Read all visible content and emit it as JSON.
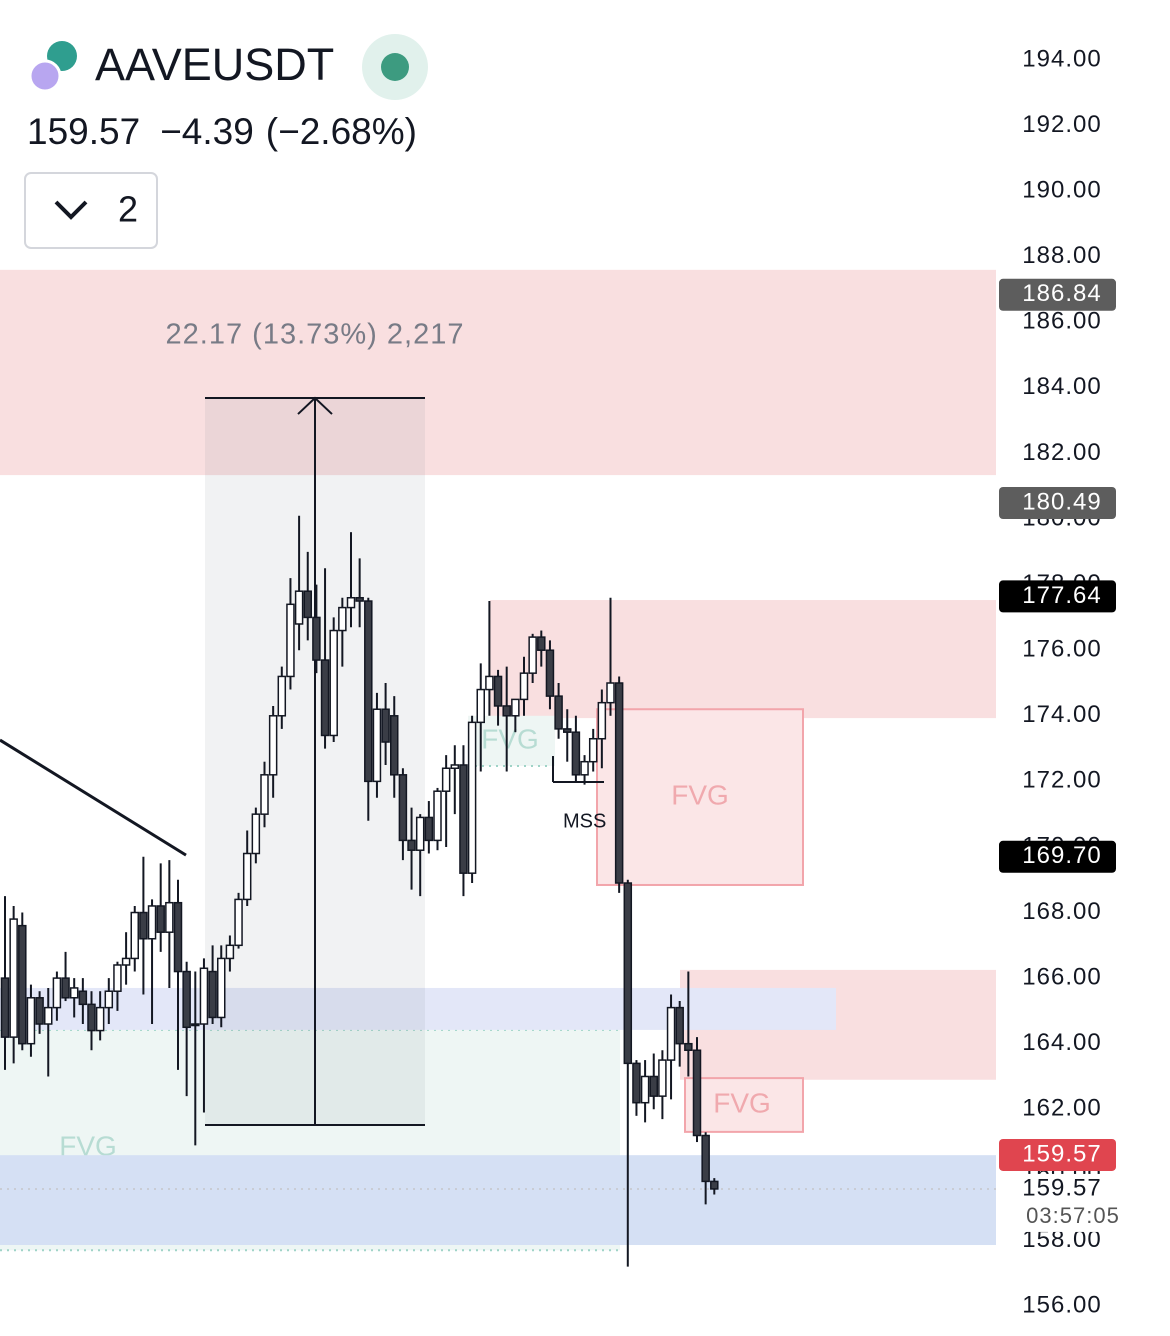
{
  "chart_data": {
    "type": "candlestick",
    "symbol": "AAVEUSDT",
    "last": 159.57,
    "change": {
      "value": -4.39,
      "label": "−4.39"
    },
    "change_pct": {
      "value": -2.68,
      "label": "(−2.68%)"
    },
    "indicators_count": 2,
    "open": [
      166.0,
      164.2,
      167.6,
      164.0,
      165.4,
      164.6,
      165.1,
      166.0,
      165.4,
      165.6,
      165.2,
      164.4,
      165.1,
      165.6,
      166.4,
      166.6,
      168.0,
      167.2,
      168.2,
      167.4,
      168.3,
      166.2,
      164.6,
      164.6,
      166.2,
      164.8,
      166.6,
      167.0,
      168.4,
      169.8,
      171.0,
      172.2,
      174.0,
      175.2,
      176.8,
      177.8,
      177.0,
      175.7,
      173.4,
      176.6,
      177.3,
      177.6,
      177.5,
      172.0,
      174.2,
      174.0,
      172.2,
      170.2,
      169.9,
      170.9,
      170.2,
      171.7,
      172.4,
      172.5,
      169.2,
      173.8,
      174.8,
      175.2,
      174.3,
      174.0,
      174.5,
      175.3,
      176.4,
      176.0,
      174.6,
      173.6,
      173.5,
      172.2,
      172.6,
      173.3,
      174.4,
      175.0,
      168.9,
      163.4,
      162.2,
      163.0,
      162.4,
      163.5,
      165.1,
      164.0,
      163.8,
      161.2,
      159.8
    ],
    "high": [
      168.5,
      168.2,
      168.0,
      165.8,
      165.6,
      165.7,
      166.2,
      166.8,
      166.0,
      166.0,
      165.6,
      165.6,
      166.0,
      166.5,
      167.4,
      168.2,
      169.7,
      168.4,
      169.5,
      169.6,
      169.0,
      166.5,
      166.2,
      166.6,
      167.0,
      167.0,
      167.3,
      168.6,
      170.5,
      171.2,
      172.6,
      174.3,
      175.5,
      178.2,
      180.1,
      179.0,
      178.0,
      178.5,
      177.0,
      177.6,
      179.6,
      178.8,
      177.6,
      174.7,
      175.0,
      174.6,
      172.4,
      171.2,
      171.0,
      171.4,
      171.8,
      172.8,
      173.1,
      173.1,
      174.0,
      175.6,
      177.5,
      175.4,
      175.5,
      174.5,
      175.8,
      176.5,
      176.6,
      176.3,
      175.0,
      174.2,
      174.0,
      172.8,
      173.6,
      174.8,
      177.6,
      175.2,
      169.0,
      163.5,
      163.5,
      163.7,
      163.8,
      165.5,
      165.3,
      166.2,
      164.2,
      161.3,
      159.9
    ],
    "low": [
      163.2,
      163.4,
      163.8,
      163.6,
      164.3,
      163.0,
      164.7,
      165.3,
      164.8,
      164.6,
      163.8,
      164.1,
      164.6,
      165.0,
      165.8,
      166.2,
      165.5,
      164.6,
      166.8,
      165.7,
      163.2,
      162.4,
      160.9,
      161.9,
      164.6,
      164.5,
      166.2,
      166.9,
      168.2,
      169.5,
      170.6,
      171.5,
      173.6,
      174.8,
      176.0,
      176.3,
      175.3,
      173.0,
      173.2,
      175.5,
      176.7,
      176.7,
      170.8,
      171.5,
      172.5,
      171.5,
      169.6,
      168.7,
      168.5,
      169.8,
      169.9,
      170.0,
      171.0,
      168.5,
      168.9,
      172.3,
      174.0,
      173.7,
      172.3,
      173.5,
      174.0,
      175.0,
      175.5,
      174.2,
      173.3,
      172.6,
      172.0,
      171.9,
      172.3,
      172.4,
      174.0,
      168.6,
      157.2,
      161.8,
      161.6,
      162.0,
      161.7,
      162.3,
      163.3,
      163.0,
      161.0,
      159.1,
      159.4
    ],
    "close": [
      164.2,
      167.8,
      164.0,
      165.4,
      164.6,
      165.1,
      166.0,
      165.4,
      165.7,
      165.2,
      164.4,
      165.1,
      165.6,
      166.4,
      166.6,
      168.0,
      167.2,
      168.2,
      167.4,
      168.3,
      166.2,
      164.5,
      164.6,
      166.3,
      164.8,
      166.6,
      167.0,
      168.4,
      169.8,
      171.0,
      172.2,
      174.0,
      175.2,
      177.4,
      177.8,
      177.0,
      175.7,
      173.4,
      176.6,
      177.3,
      177.6,
      177.5,
      172.0,
      174.2,
      173.2,
      172.2,
      170.2,
      169.9,
      170.9,
      170.2,
      171.7,
      172.4,
      172.5,
      169.2,
      173.8,
      174.8,
      175.2,
      174.3,
      174.0,
      174.5,
      175.3,
      176.4,
      176.0,
      174.6,
      173.6,
      173.5,
      172.2,
      172.6,
      173.3,
      174.4,
      175.0,
      168.9,
      163.4,
      162.2,
      163.0,
      162.4,
      163.5,
      165.1,
      164.0,
      163.8,
      161.2,
      159.8,
      159.57
    ],
    "ylim": [
      156,
      194
    ],
    "yticks": [
      {
        "value": 156,
        "label": "156.00"
      },
      {
        "value": 158,
        "label": "158.00"
      },
      {
        "value": 160,
        "label": "160.00"
      },
      {
        "value": 162,
        "label": "162.00"
      },
      {
        "value": 164,
        "label": "164.00"
      },
      {
        "value": 166,
        "label": "166.00"
      },
      {
        "value": 168,
        "label": "168.00"
      },
      {
        "value": 170,
        "label": "170.00"
      },
      {
        "value": 172,
        "label": "172.00"
      },
      {
        "value": 174,
        "label": "174.00"
      },
      {
        "value": 176,
        "label": "176.00"
      },
      {
        "value": 178,
        "label": "178.00"
      },
      {
        "value": 180,
        "label": "180.00"
      },
      {
        "value": 182,
        "label": "182.00"
      },
      {
        "value": 184,
        "label": "184.00"
      },
      {
        "value": 186,
        "label": "186.00"
      },
      {
        "value": 188,
        "label": "188.00"
      },
      {
        "value": 190,
        "label": "190.00"
      },
      {
        "value": 192,
        "label": "192.00"
      },
      {
        "value": 194,
        "label": "194.00"
      }
    ],
    "zones": [
      {
        "top": 187.6,
        "bottom": 181.34,
        "color": "#f9dfe0"
      },
      {
        "top": 177.53,
        "bottom": 173.93,
        "color": "#f9dfe0"
      },
      {
        "top": 174.2,
        "bottom": 168.84,
        "color": "#fbe6e7",
        "label": "FVG"
      },
      {
        "top": 166.25,
        "bottom": 162.9,
        "color": "#f9dfe0"
      },
      {
        "top": 162.95,
        "bottom": 161.31,
        "color": "#fbe6e7",
        "label": "FVG"
      },
      {
        "top": 164.42,
        "bottom": 157.7,
        "color": "#eef6f4",
        "label": "FVG"
      },
      {
        "top": 165.7,
        "bottom": 164.42,
        "color": "#e3e7f8"
      },
      {
        "top": 160.6,
        "bottom": 157.86,
        "color": "#d5e0f4"
      },
      {
        "top": 174.0,
        "bottom": 172.47,
        "color": "#eef6f4",
        "label": "FVG"
      }
    ],
    "measure": {
      "top": 183.69,
      "bottom": 161.52,
      "label": "22.17 (13.73%) 2,217"
    },
    "trendline": {
      "start": 173.26,
      "end": 169.75
    },
    "mss": {
      "level": 171.98,
      "label": "MSS"
    },
    "price_labels": [
      {
        "value": 186.84,
        "label": "186.84",
        "color": "#5d5d5d"
      },
      {
        "value": 180.49,
        "label": "180.49",
        "color": "#5d5d5d"
      },
      {
        "value": 177.64,
        "label": "177.64",
        "color": "#000000"
      },
      {
        "value": 169.7,
        "label": "169.70",
        "color": "#000000"
      }
    ],
    "last_label": {
      "value": 159.57,
      "label": "159.57",
      "color": "#e0454f"
    },
    "countdown": "03:57:05"
  }
}
